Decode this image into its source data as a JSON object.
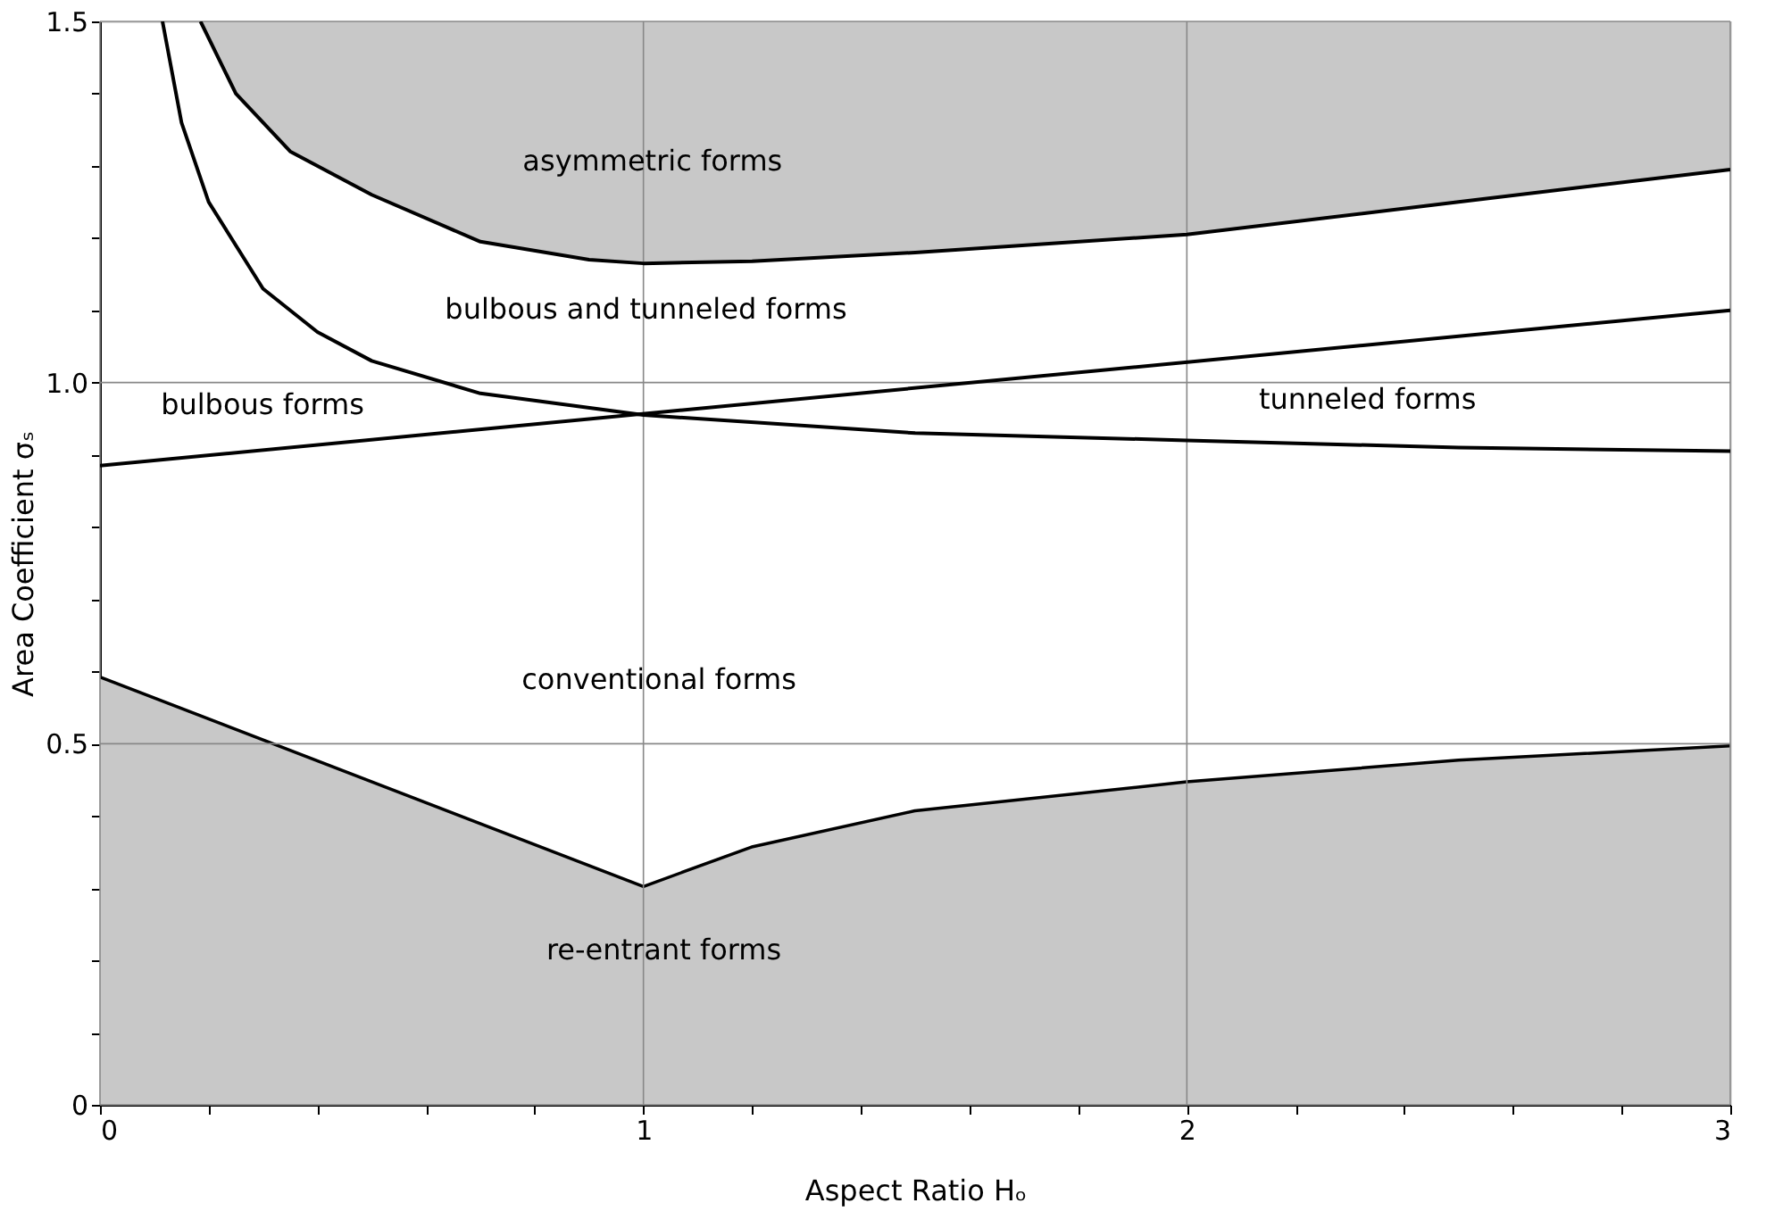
{
  "chart_data": {
    "type": "line",
    "xlabel": "Aspect Ratio Hₒ",
    "ylabel": "Area Coefficient σₛ",
    "xlim": [
      0,
      3
    ],
    "ylim": [
      0,
      1.5
    ],
    "xticks": [
      0,
      {
        "value": 0.2,
        "label": null
      },
      {
        "value": 0.4,
        "label": null
      },
      {
        "value": 0.6,
        "label": null
      },
      {
        "value": 0.8,
        "label": null
      },
      1,
      {
        "value": 1.2,
        "label": null
      },
      {
        "value": 1.4,
        "label": null
      },
      {
        "value": 1.6,
        "label": null
      },
      {
        "value": 1.8,
        "label": null
      },
      2,
      {
        "value": 2.2,
        "label": null
      },
      {
        "value": 2.4,
        "label": null
      },
      {
        "value": 2.6,
        "label": null
      },
      {
        "value": 2.8,
        "label": null
      },
      3
    ],
    "yticks": [
      0,
      {
        "value": 0.1,
        "label": null
      },
      {
        "value": 0.2,
        "label": null
      },
      {
        "value": 0.3,
        "label": null
      },
      {
        "value": 0.4,
        "label": null
      },
      0.5,
      {
        "value": 0.6,
        "label": null
      },
      {
        "value": 0.7,
        "label": null
      },
      {
        "value": 0.8,
        "label": null
      },
      {
        "value": 0.9,
        "label": null
      },
      {
        "value": 1,
        "label": "1.0"
      },
      {
        "value": 1.1,
        "label": null
      },
      {
        "value": 1.2,
        "label": null
      },
      {
        "value": 1.3,
        "label": null
      },
      {
        "value": 1.4,
        "label": null
      },
      1.5
    ],
    "grid": true,
    "series": [
      {
        "color": "#000000",
        "x": [
          0.185,
          0.25,
          0.35,
          0.5,
          0.7,
          0.9,
          1.0,
          1.2,
          1.5,
          2,
          2.5,
          3
        ],
        "values": [
          1.5,
          1.4,
          1.32,
          1.26,
          1.195,
          1.17,
          1.165,
          1.168,
          1.18,
          1.205,
          1.25,
          1.295
        ],
        "lower": [
          1.5,
          1.4,
          1.32,
          1.26,
          1.195,
          1.17,
          1.165,
          1.168,
          1.18,
          1.205,
          1.25,
          1.295
        ],
        "upper": [
          1.5,
          1.5,
          1.5,
          1.5,
          1.5,
          1.5,
          1.5,
          1.5,
          1.5,
          1.5,
          1.5,
          1.5
        ]
      },
      {
        "color": "#000000",
        "x": [
          0.115,
          0.15,
          0.2,
          0.3,
          0.4,
          0.5,
          0.7,
          1,
          1.5,
          2,
          2.5,
          3
        ],
        "values": [
          1.5,
          1.36,
          1.25,
          1.13,
          1.07,
          1.03,
          0.985,
          0.955,
          0.93,
          0.92,
          0.91,
          0.905
        ]
      },
      {
        "color": "#000000",
        "x": [
          0,
          3
        ],
        "values": [
          0.885,
          1.1
        ]
      },
      {
        "type": "area",
        "color": "#c8c8c8",
        "x": [
          0,
          1,
          1.2,
          1.5,
          2,
          2.5,
          3
        ],
        "values": [
          0.59,
          0.3,
          0.355,
          0.405,
          0.445,
          0.475,
          0.495
        ]
      }
    ],
    "annotations": [
      "asymmetric forms",
      "bulbous and tunneled forms",
      "bulbous forms",
      "tunneled forms",
      "conventional forms",
      "re-entrant forms"
    ]
  }
}
